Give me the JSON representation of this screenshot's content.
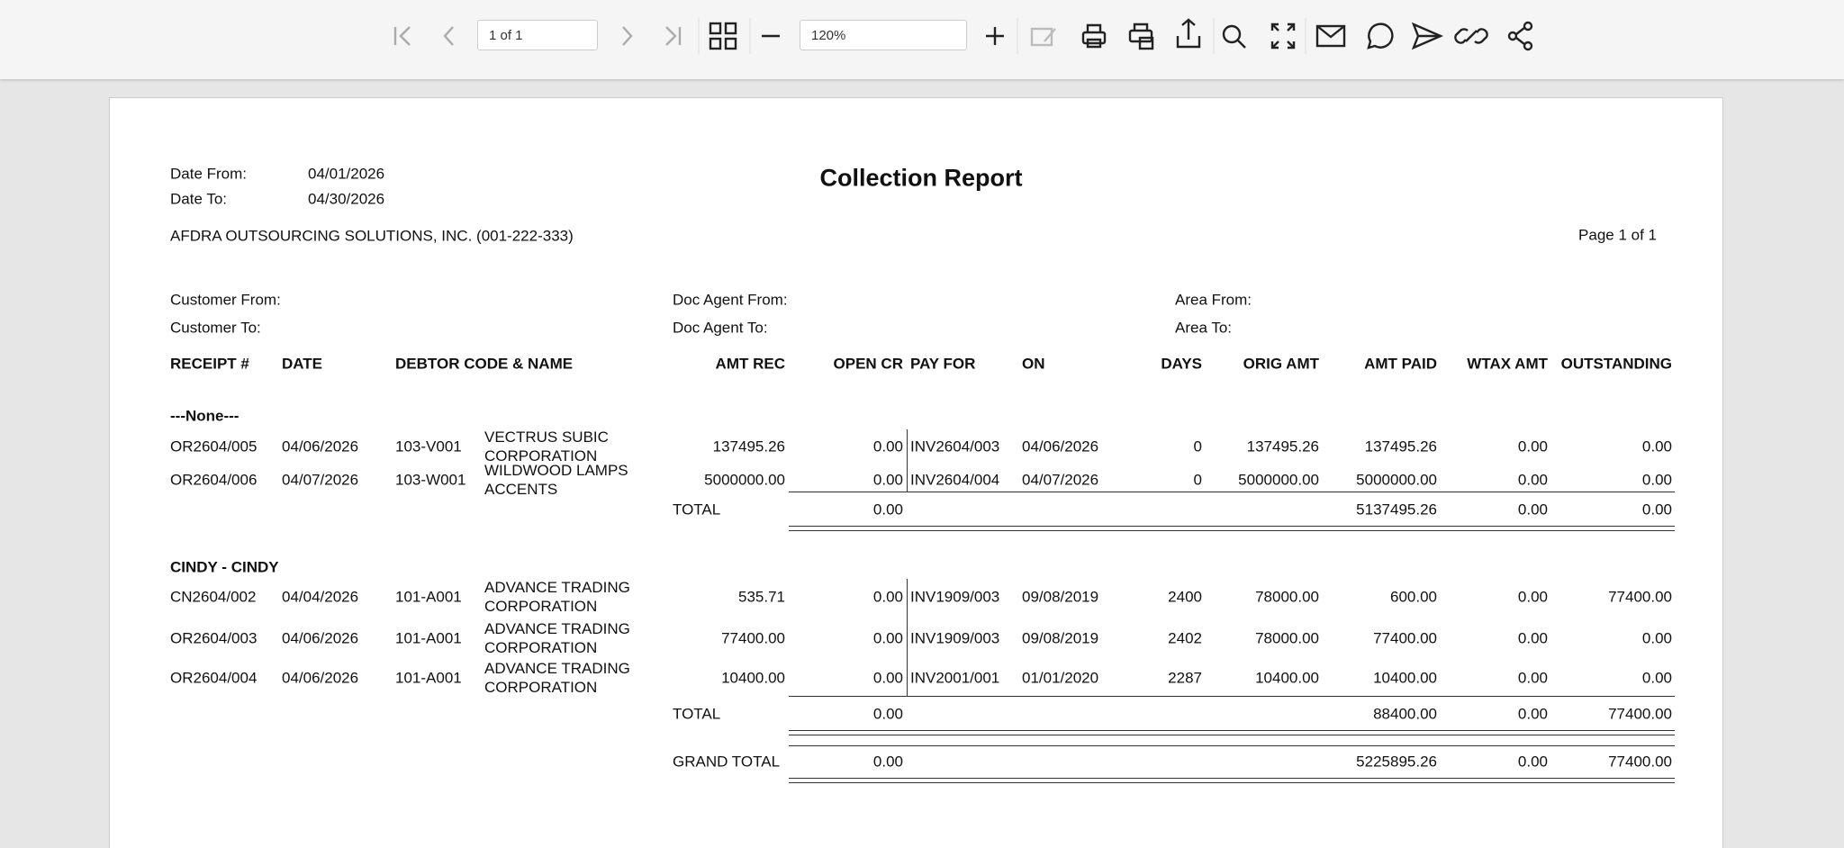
{
  "toolbar": {
    "page_indicator": "1 of 1",
    "zoom": "120%"
  },
  "report": {
    "title": "Collection Report",
    "date_from": {
      "label": "Date From:",
      "value": "04/01/2026"
    },
    "date_to": {
      "label": "Date To:",
      "value": "04/30/2026"
    },
    "company": "AFDRA OUTSOURCING SOLUTIONS, INC. (001-222-333)",
    "page": "Page 1 of 1",
    "filters": [
      "Customer From:",
      "Customer To:",
      "Doc Agent From:",
      "Doc Agent To:",
      "Area From:",
      "Area To:"
    ],
    "columns": [
      "RECEIPT #",
      "DATE",
      "DEBTOR CODE & NAME",
      "AMT REC",
      "OPEN CR",
      "PAY FOR",
      "ON",
      "DAYS",
      "ORIG AMT",
      "AMT PAID",
      "WTAX AMT",
      "OUTSTANDING"
    ],
    "groups": [
      {
        "name": "---None---",
        "rows": [
          [
            "OR2604/005",
            "04/06/2026",
            "103-V001",
            "VECTRUS SUBIC CORPORATION",
            "137495.26",
            "0.00",
            "INV2604/003",
            "04/06/2026",
            "0",
            "137495.26",
            "137495.26",
            "0.00",
            "0.00"
          ],
          [
            "OR2604/006",
            "04/07/2026",
            "103-W001",
            "WILDWOOD LAMPS ACCENTS",
            "5000000.00",
            "0.00",
            "INV2604/004",
            "04/07/2026",
            "0",
            "5000000.00",
            "5000000.00",
            "0.00",
            "0.00"
          ]
        ],
        "total": {
          "label": "TOTAL",
          "open_cr": "0.00",
          "amt_paid": "5137495.26",
          "wtax_amt": "0.00",
          "outstanding": "0.00"
        }
      },
      {
        "name": "CINDY - CINDY",
        "rows": [
          [
            "CN2604/002",
            "04/04/2026",
            "101-A001",
            "ADVANCE TRADING CORPORATION",
            "535.71",
            "0.00",
            "INV1909/003",
            "09/08/2019",
            "2400",
            "78000.00",
            "600.00",
            "0.00",
            "77400.00"
          ],
          [
            "OR2604/003",
            "04/06/2026",
            "101-A001",
            "ADVANCE TRADING CORPORATION",
            "77400.00",
            "0.00",
            "INV1909/003",
            "09/08/2019",
            "2402",
            "78000.00",
            "77400.00",
            "0.00",
            "0.00"
          ],
          [
            "OR2604/004",
            "04/06/2026",
            "101-A001",
            "ADVANCE TRADING CORPORATION",
            "10400.00",
            "0.00",
            "INV2001/001",
            "01/01/2020",
            "2287",
            "10400.00",
            "10400.00",
            "0.00",
            "0.00"
          ]
        ],
        "total": {
          "label": "TOTAL",
          "open_cr": "0.00",
          "amt_paid": "88400.00",
          "wtax_amt": "0.00",
          "outstanding": "77400.00"
        }
      }
    ],
    "grand_total": {
      "label": "GRAND TOTAL",
      "open_cr": "0.00",
      "amt_paid": "5225895.26",
      "wtax_amt": "0.00",
      "outstanding": "77400.00"
    }
  }
}
